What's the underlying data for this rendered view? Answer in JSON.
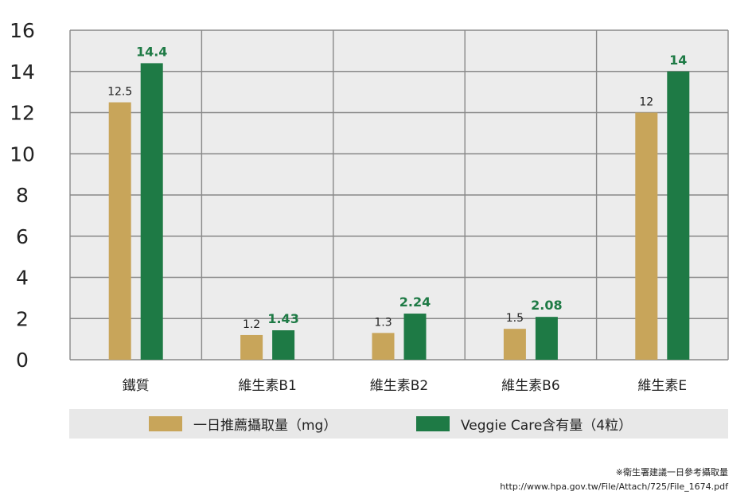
{
  "chart_data": {
    "type": "bar",
    "categories": [
      "鐵質",
      "維生素B1",
      "維生素B2",
      "維生素B6",
      "維生素E"
    ],
    "series": [
      {
        "name": "一日推薦攝取量（mg）",
        "values": [
          12.5,
          1.2,
          1.3,
          1.5,
          12
        ],
        "labels": [
          "12.5",
          "1.2",
          "1.3",
          "1.5",
          "12"
        ],
        "color": "#c8a55a"
      },
      {
        "name": "Veggie Care含有量（4粒）",
        "values": [
          14.4,
          1.43,
          2.24,
          2.08,
          14
        ],
        "labels": [
          "14.4",
          "1.43",
          "2.24",
          "2.08",
          "14"
        ],
        "color": "#1e7a45"
      }
    ],
    "ylim": [
      0,
      16
    ],
    "yticks": [
      "0",
      "2",
      "4",
      "6",
      "8",
      "10",
      "12",
      "14",
      "16"
    ],
    "grid": true,
    "plot_background": "#ececec",
    "grid_color": "#888888",
    "legend_position": "bottom"
  },
  "footnote": {
    "source_note": "※衛生署建議一日參考攝取量",
    "url": "http://www.hpa.gov.tw/File/Attach/725/File_1674.pdf"
  }
}
